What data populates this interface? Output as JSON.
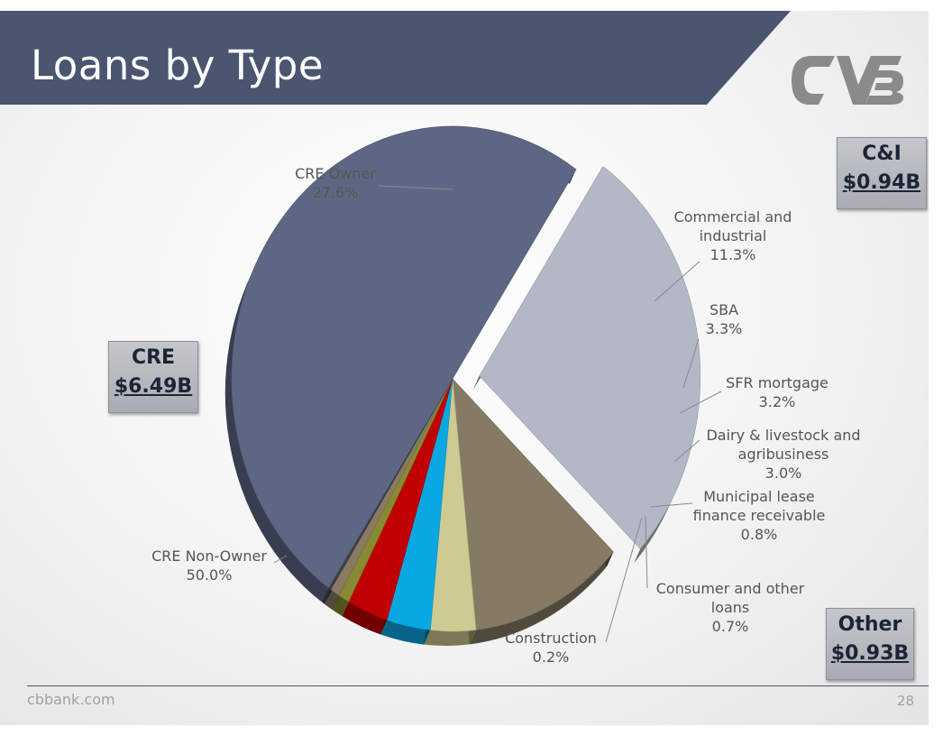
{
  "slide": {
    "title": "Loans by Type",
    "footer_site": "cbbank.com",
    "page_number": "28",
    "colors": {
      "banner": "#4a5570",
      "logo": "#8a8a8a"
    }
  },
  "callouts": {
    "cre": {
      "key": "CRE",
      "value": "$6.49B"
    },
    "ci": {
      "key": "C&I",
      "value": "$0.94B"
    },
    "other": {
      "key": "Other",
      "value": "$0.93B"
    }
  },
  "chart_data": {
    "type": "pie",
    "title": "",
    "series": [
      {
        "name": "CRE Owner",
        "label_lines": [
          "CRE Owner",
          "27.6%"
        ],
        "value": 27.6,
        "color": "#b4b7c6",
        "exploded": true
      },
      {
        "name": "Commercial and industrial",
        "label_lines": [
          "Commercial and",
          "industrial",
          "11.3%"
        ],
        "value": 11.3,
        "color": "#857b65",
        "exploded": false
      },
      {
        "name": "SBA",
        "label_lines": [
          "SBA",
          "3.3%"
        ],
        "value": 3.3,
        "color": "#cdca92",
        "exploded": false
      },
      {
        "name": "SFR mortgage",
        "label_lines": [
          "SFR mortgage",
          "3.2%"
        ],
        "value": 3.2,
        "color": "#0aa8e2",
        "exploded": false
      },
      {
        "name": "Dairy & livestock and agribusiness",
        "label_lines": [
          "Dairy & livestock and",
          "agribusiness",
          "3.0%"
        ],
        "value": 3.0,
        "color": "#c00000",
        "exploded": false
      },
      {
        "name": "Municipal lease finance receivable",
        "label_lines": [
          "Municipal lease",
          "finance receivable",
          "0.8%"
        ],
        "value": 0.8,
        "color": "#878a33",
        "exploded": false
      },
      {
        "name": "Consumer and other loans",
        "label_lines": [
          "Consumer and other",
          "loans",
          "0.7%"
        ],
        "value": 0.7,
        "color": "#8a7a62",
        "exploded": false
      },
      {
        "name": "Construction",
        "label_lines": [
          "Construction",
          "0.2%"
        ],
        "value": 0.2,
        "color": "#3c4048",
        "exploded": false
      },
      {
        "name": "CRE Non-Owner",
        "label_lines": [
          "CRE Non-Owner",
          "50.0%"
        ],
        "value": 50.0,
        "color": "#5d6784",
        "exploded": false
      }
    ],
    "label_placement": "outside with leader lines"
  }
}
